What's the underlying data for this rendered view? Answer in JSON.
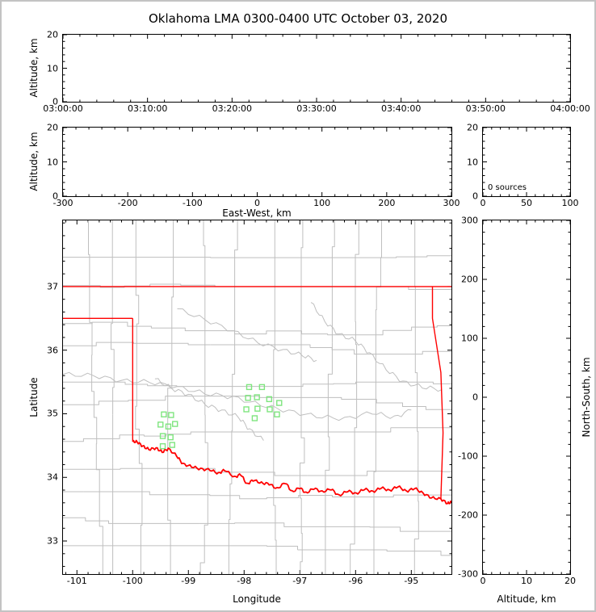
{
  "title": "Oklahoma LMA 0300-0400 UTC October 03, 2020",
  "labels": {
    "altitude": "Altitude, km",
    "east_west": "East-West, km",
    "longitude": "Longitude",
    "latitude": "Latitude",
    "north_south": "North-South, km"
  },
  "colors": {
    "state_border": "#ff0000",
    "county_line": "#bfbfbf",
    "river": "#bfbfbf",
    "station": "#7fe57f",
    "axis": "#000000"
  },
  "chart_data": [
    {
      "name": "time_height",
      "type": "scatter",
      "ylabel": "Altitude, km",
      "xlim": [
        0,
        3600
      ],
      "x_ticks": [
        0,
        600,
        1200,
        1800,
        2400,
        3000,
        3600
      ],
      "x_tick_labels": [
        "03:00:00",
        "03:10:00",
        "03:20:00",
        "03:30:00",
        "03:40:00",
        "03:50:00",
        "04:00:00"
      ],
      "ylim": [
        0,
        20
      ],
      "y_ticks": [
        0,
        10,
        20
      ],
      "y_tick_labels": [
        "0",
        "10",
        "20"
      ],
      "points": []
    },
    {
      "name": "ew_height",
      "type": "scatter",
      "xlabel": "East-West, km",
      "ylabel": "Altitude, km",
      "xlim": [
        -300,
        300
      ],
      "x_ticks": [
        -300,
        -200,
        -100,
        0,
        100,
        200,
        300
      ],
      "x_tick_labels": [
        "-300",
        "-200",
        "-100",
        "0",
        "100",
        "200",
        "300"
      ],
      "ylim": [
        0,
        20
      ],
      "y_ticks": [
        0,
        10,
        20
      ],
      "y_tick_labels": [
        "0",
        "10",
        "20"
      ],
      "points": []
    },
    {
      "name": "source_histogram",
      "type": "line",
      "annotation": "0 sources",
      "xlim": [
        0,
        100
      ],
      "x_ticks": [
        0,
        50,
        100
      ],
      "x_tick_labels": [
        "0",
        "50",
        "100"
      ],
      "ylim": [
        0,
        20
      ],
      "y_ticks": [
        0,
        10,
        20
      ],
      "y_tick_labels": [
        "0",
        "10",
        "20"
      ],
      "points": []
    },
    {
      "name": "plan_view",
      "type": "scatter",
      "xlabel": "Longitude",
      "ylabel": "Latitude",
      "xlim": [
        -101.25,
        -94.28
      ],
      "x_ticks": [
        -101,
        -100,
        -99,
        -98,
        -97,
        -96,
        -95
      ],
      "x_tick_labels": [
        "-101",
        "-100",
        "-99",
        "-98",
        "-97",
        "-96",
        "-95"
      ],
      "ylim": [
        32.48,
        38.04
      ],
      "y_ticks": [
        33,
        34,
        35,
        36,
        37
      ],
      "y_tick_labels": [
        "33",
        "34",
        "35",
        "36",
        "37"
      ],
      "stations": [
        [
          -97.91,
          35.42
        ],
        [
          -97.68,
          35.42
        ],
        [
          -97.93,
          35.25
        ],
        [
          -97.77,
          35.26
        ],
        [
          -97.55,
          35.23
        ],
        [
          -97.96,
          35.07
        ],
        [
          -97.76,
          35.08
        ],
        [
          -97.54,
          35.07
        ],
        [
          -97.37,
          35.17
        ],
        [
          -97.41,
          34.99
        ],
        [
          -97.81,
          34.93
        ],
        [
          -99.44,
          34.99
        ],
        [
          -99.31,
          34.98
        ],
        [
          -99.5,
          34.83
        ],
        [
          -99.36,
          34.8
        ],
        [
          -99.24,
          34.84
        ],
        [
          -99.46,
          34.65
        ],
        [
          -99.32,
          34.63
        ],
        [
          -99.46,
          34.49
        ],
        [
          -99.29,
          34.51
        ]
      ],
      "state_borders": [
        [
          [
            -101.25,
            37.0
          ],
          [
            -94.28,
            37.0
          ]
        ],
        [
          [
            -101.25,
            36.5
          ],
          [
            -100.0,
            36.5
          ]
        ],
        [
          [
            -100.0,
            36.5
          ],
          [
            -100.0,
            34.56
          ]
        ],
        [
          [
            -94.62,
            37.0
          ],
          [
            -94.62,
            36.5
          ],
          [
            -94.47,
            35.65
          ],
          [
            -94.43,
            34.7
          ],
          [
            -94.47,
            33.66
          ]
        ]
      ],
      "red_river": [
        [
          -100.0,
          34.56
        ],
        [
          -99.92,
          34.56
        ],
        [
          -99.82,
          34.49
        ],
        [
          -99.71,
          34.44
        ],
        [
          -99.58,
          34.46
        ],
        [
          -99.47,
          34.4
        ],
        [
          -99.36,
          34.45
        ],
        [
          -99.21,
          34.34
        ],
        [
          -99.1,
          34.21
        ],
        [
          -98.94,
          34.17
        ],
        [
          -98.78,
          34.13
        ],
        [
          -98.61,
          34.12
        ],
        [
          -98.46,
          34.06
        ],
        [
          -98.35,
          34.12
        ],
        [
          -98.17,
          34.0
        ],
        [
          -98.06,
          34.05
        ],
        [
          -97.95,
          33.89
        ],
        [
          -97.84,
          33.96
        ],
        [
          -97.69,
          33.91
        ],
        [
          -97.55,
          33.9
        ],
        [
          -97.41,
          33.82
        ],
        [
          -97.26,
          33.92
        ],
        [
          -97.14,
          33.77
        ],
        [
          -97.0,
          33.84
        ],
        [
          -96.89,
          33.75
        ],
        [
          -96.75,
          33.83
        ],
        [
          -96.6,
          33.77
        ],
        [
          -96.44,
          33.82
        ],
        [
          -96.3,
          33.71
        ],
        [
          -96.14,
          33.79
        ],
        [
          -95.99,
          33.74
        ],
        [
          -95.84,
          33.82
        ],
        [
          -95.69,
          33.77
        ],
        [
          -95.54,
          33.84
        ],
        [
          -95.39,
          33.79
        ],
        [
          -95.24,
          33.86
        ],
        [
          -95.09,
          33.78
        ],
        [
          -94.94,
          33.83
        ],
        [
          -94.79,
          33.75
        ],
        [
          -94.64,
          33.68
        ],
        [
          -94.47,
          33.66
        ],
        [
          -94.35,
          33.59
        ],
        [
          -94.28,
          33.61
        ]
      ],
      "gray_rivers": [
        [
          [
            -101.25,
            35.62
          ],
          [
            -100.7,
            35.6
          ],
          [
            -100.2,
            35.52
          ],
          [
            -99.7,
            35.5
          ],
          [
            -99.2,
            35.42
          ],
          [
            -98.7,
            35.32
          ],
          [
            -98.2,
            35.26
          ],
          [
            -97.7,
            35.14
          ],
          [
            -97.2,
            35.04
          ],
          [
            -96.7,
            34.96
          ],
          [
            -96.2,
            34.92
          ],
          [
            -95.7,
            35.02
          ],
          [
            -95.3,
            34.94
          ],
          [
            -95.0,
            35.06
          ]
        ],
        [
          [
            -96.8,
            36.75
          ],
          [
            -96.55,
            36.45
          ],
          [
            -96.3,
            36.25
          ],
          [
            -96.0,
            36.15
          ],
          [
            -95.75,
            35.95
          ],
          [
            -95.45,
            35.7
          ],
          [
            -95.15,
            35.5
          ],
          [
            -94.8,
            35.42
          ],
          [
            -94.45,
            35.38
          ]
        ],
        [
          [
            -99.2,
            36.65
          ],
          [
            -98.7,
            36.48
          ],
          [
            -98.2,
            36.3
          ],
          [
            -97.75,
            36.12
          ],
          [
            -97.3,
            36.0
          ],
          [
            -96.95,
            35.92
          ],
          [
            -96.7,
            35.84
          ]
        ],
        [
          [
            -99.6,
            35.55
          ],
          [
            -99.3,
            35.4
          ],
          [
            -99.0,
            35.3
          ],
          [
            -98.7,
            35.15
          ],
          [
            -98.4,
            35.05
          ],
          [
            -98.1,
            34.95
          ],
          [
            -97.9,
            34.75
          ],
          [
            -97.65,
            34.58
          ]
        ]
      ],
      "county_grid": {
        "lon0": -101.25,
        "lon1": -94.28,
        "lat0": 32.48,
        "lat1": 38.04,
        "lon_step": 0.52,
        "lat_step": 0.46,
        "seed": 5
      }
    },
    {
      "name": "ns_height",
      "type": "scatter",
      "xlabel": "Altitude, km",
      "ylabel": "North-South, km",
      "xlim": [
        0,
        20
      ],
      "x_ticks": [
        0,
        10,
        20
      ],
      "x_tick_labels": [
        "0",
        "10",
        "20"
      ],
      "ylim": [
        -300,
        300
      ],
      "y_ticks": [
        -300,
        -200,
        -100,
        0,
        100,
        200,
        300
      ],
      "y_tick_labels": [
        "-300",
        "-200",
        "-100",
        "0",
        "100",
        "200",
        "300"
      ],
      "points": []
    }
  ]
}
